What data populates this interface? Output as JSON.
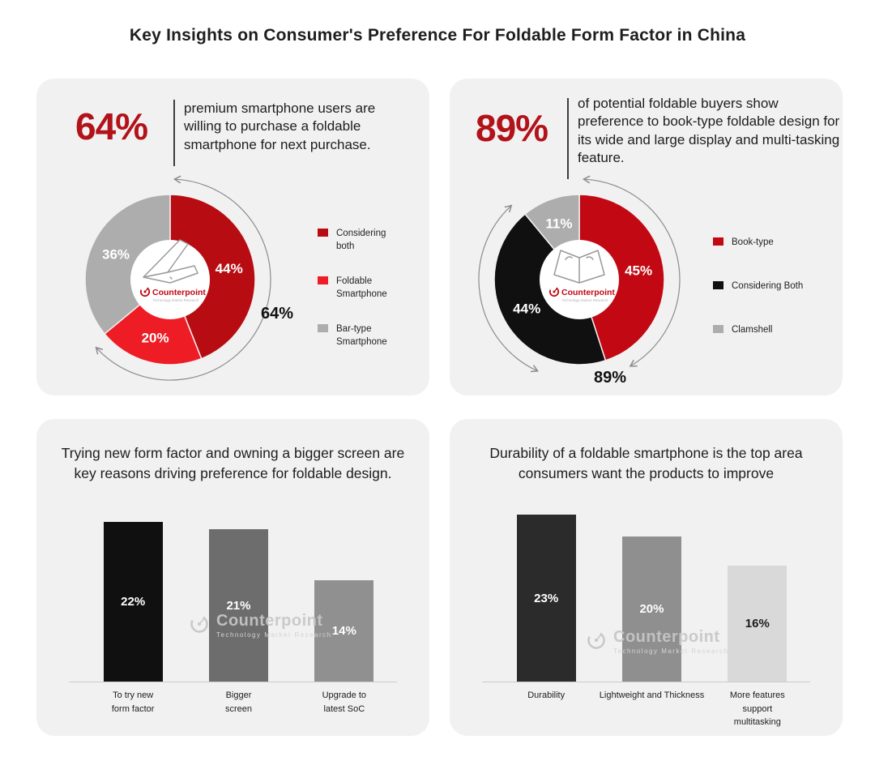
{
  "page_title": "Key Insights on Consumer's Preference For Foldable Form Factor in China",
  "brand": {
    "logo_text": "Counterpoint",
    "tagline": "Technology Market Research"
  },
  "colors": {
    "accent_dark_red": "#b2121a",
    "slice_dark_red": "#b70d12",
    "slice_bright_red": "#ee1c25",
    "slice_crimson": "#c20813",
    "slice_black": "#101010",
    "slice_gray": "#adadad",
    "panel_bg": "#f2f1f1",
    "text_dark": "#1d1d1d",
    "annotation_gray": "#8c8c8c"
  },
  "panels": {
    "top_left": {
      "stat": "64%",
      "statement": "premium smartphone users are willing to purchase a foldable smartphone for next purchase."
    },
    "top_right": {
      "stat": "89%",
      "statement": "of potential foldable buyers show preference to book-type foldable design for its wide and large display and multi-tasking feature."
    },
    "bottom_left": {
      "title": "Trying new form factor and owning a bigger screen are key reasons driving preference for foldable design."
    },
    "bottom_right": {
      "title": "Durability of a foldable smartphone is the top area consumers want the products to improve"
    }
  },
  "chart_data": [
    {
      "id": "donut-purchase-intent",
      "type": "donut",
      "center_icon": "flip-phone-sketch",
      "legend_position": "right",
      "slices": [
        {
          "name": "Considering both",
          "value": 44,
          "label": "44%",
          "color": "#b70d12"
        },
        {
          "name": "Foldable Smartphone",
          "value": 20,
          "label": "20%",
          "color": "#ee1c25"
        },
        {
          "name": "Bar-type Smartphone",
          "value": 36,
          "label": "36%",
          "color": "#adadad"
        }
      ],
      "arc_annotation": {
        "text": "64%",
        "span_pct": 64,
        "radius": 124,
        "segments": [
          [
            3,
            227
          ]
        ]
      }
    },
    {
      "id": "donut-form-factor-preference",
      "type": "donut",
      "center_icon": "book-foldable-sketch",
      "legend_position": "right",
      "slices": [
        {
          "name": "Book-type",
          "value": 45,
          "label": "45%",
          "color": "#c20813"
        },
        {
          "name": "Considering Both",
          "value": 44,
          "label": "44%",
          "color": "#101010"
        },
        {
          "name": "Clamshell",
          "value": 11,
          "label": "11%",
          "color": "#adadad"
        }
      ],
      "arc_annotation": {
        "text": "89%",
        "span_pct": 89,
        "radius": 124,
        "segments": [
          [
            3,
            149
          ],
          [
            317,
            205
          ]
        ]
      }
    },
    {
      "id": "bars-preference-reasons",
      "type": "bar",
      "ylim": [
        0,
        26
      ],
      "grid": false,
      "bars": [
        {
          "category": "To try new\nform factor",
          "value": 22,
          "label": "22%",
          "color": "#101010",
          "label_color": "#ffffff"
        },
        {
          "category": "Bigger\nscreen",
          "value": 21,
          "label": "21%",
          "color": "#6d6d6d",
          "label_color": "#ffffff"
        },
        {
          "category": "Upgrade to\nlatest SoC",
          "value": 14,
          "label": "14%",
          "color": "#909090",
          "label_color": "#ffffff"
        }
      ]
    },
    {
      "id": "bars-improvement-areas",
      "type": "bar",
      "ylim": [
        0,
        26
      ],
      "grid": false,
      "bars": [
        {
          "category": "Durability",
          "value": 23,
          "label": "23%",
          "color": "#2b2b2b",
          "label_color": "#ffffff"
        },
        {
          "category": "Lightweight and Thickness",
          "value": 20,
          "label": "20%",
          "color": "#8f8f8f",
          "label_color": "#ffffff"
        },
        {
          "category": "More features\nsupport\nmultitasking",
          "value": 16,
          "label": "16%",
          "color": "#d9d9d9",
          "label_color": "#1d1d1d"
        }
      ]
    }
  ]
}
